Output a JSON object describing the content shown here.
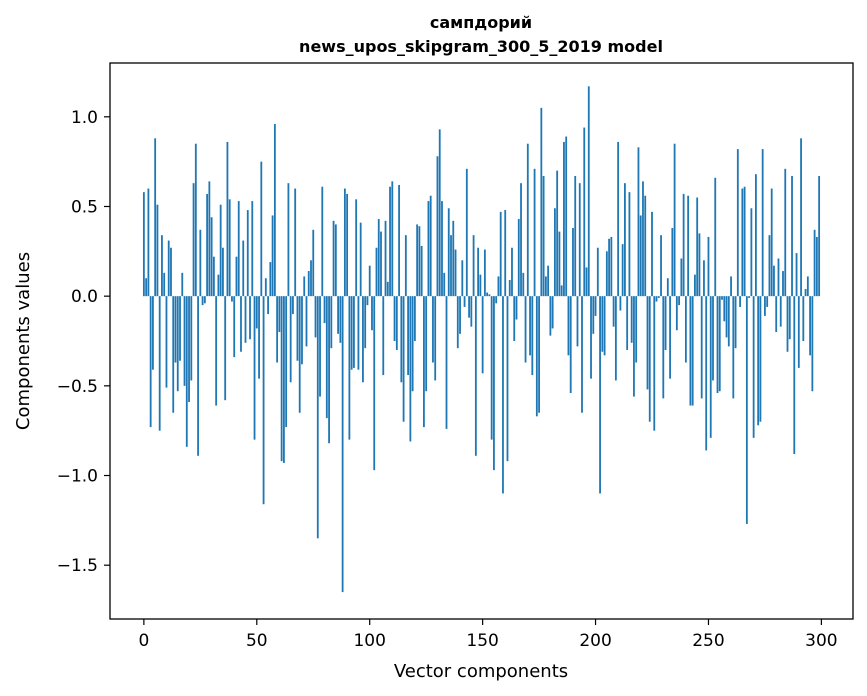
{
  "chart_data": {
    "type": "bar",
    "title_lines": [
      "сампдорий",
      "news_upos_skipgram_300_5_2019 model"
    ],
    "xlabel": "Vector components",
    "ylabel": "Components values",
    "xlim": [
      -15,
      314
    ],
    "ylim": [
      -1.8,
      1.3
    ],
    "x_ticks": [
      0,
      50,
      100,
      150,
      200,
      250,
      300
    ],
    "y_ticks": [
      -1.5,
      -1.0,
      -0.5,
      0.0,
      0.5,
      1.0
    ],
    "y_tick_labels": [
      "−1.5",
      "−1.0",
      "−0.5",
      "0.0",
      "0.5",
      "1.0"
    ],
    "grid": false,
    "bar_color": "#1f77b4",
    "x": [
      0,
      1,
      2,
      3,
      4,
      5,
      6,
      7,
      8,
      9,
      10,
      11,
      12,
      13,
      14,
      15,
      16,
      17,
      18,
      19,
      20,
      21,
      22,
      23,
      24,
      25,
      26,
      27,
      28,
      29,
      30,
      31,
      32,
      33,
      34,
      35,
      36,
      37,
      38,
      39,
      40,
      41,
      42,
      43,
      44,
      45,
      46,
      47,
      48,
      49,
      50,
      51,
      52,
      53,
      54,
      55,
      56,
      57,
      58,
      59,
      60,
      61,
      62,
      63,
      64,
      65,
      66,
      67,
      68,
      69,
      70,
      71,
      72,
      73,
      74,
      75,
      76,
      77,
      78,
      79,
      80,
      81,
      82,
      83,
      84,
      85,
      86,
      87,
      88,
      89,
      90,
      91,
      92,
      93,
      94,
      95,
      96,
      97,
      98,
      99,
      100,
      101,
      102,
      103,
      104,
      105,
      106,
      107,
      108,
      109,
      110,
      111,
      112,
      113,
      114,
      115,
      116,
      117,
      118,
      119,
      120,
      121,
      122,
      123,
      124,
      125,
      126,
      127,
      128,
      129,
      130,
      131,
      132,
      133,
      134,
      135,
      136,
      137,
      138,
      139,
      140,
      141,
      142,
      143,
      144,
      145,
      146,
      147,
      148,
      149,
      150,
      151,
      152,
      153,
      154,
      155,
      156,
      157,
      158,
      159,
      160,
      161,
      162,
      163,
      164,
      165,
      166,
      167,
      168,
      169,
      170,
      171,
      172,
      173,
      174,
      175,
      176,
      177,
      178,
      179,
      180,
      181,
      182,
      183,
      184,
      185,
      186,
      187,
      188,
      189,
      190,
      191,
      192,
      193,
      194,
      195,
      196,
      197,
      198,
      199,
      200,
      201,
      202,
      203,
      204,
      205,
      206,
      207,
      208,
      209,
      210,
      211,
      212,
      213,
      214,
      215,
      216,
      217,
      218,
      219,
      220,
      221,
      222,
      223,
      224,
      225,
      226,
      227,
      228,
      229,
      230,
      231,
      232,
      233,
      234,
      235,
      236,
      237,
      238,
      239,
      240,
      241,
      242,
      243,
      244,
      245,
      246,
      247,
      248,
      249,
      250,
      251,
      252,
      253,
      254,
      255,
      256,
      257,
      258,
      259,
      260,
      261,
      262,
      263,
      264,
      265,
      266,
      267,
      268,
      269,
      270,
      271,
      272,
      273,
      274,
      275,
      276,
      277,
      278,
      279,
      280,
      281,
      282,
      283,
      284,
      285,
      286,
      287,
      288,
      289,
      290,
      291,
      292,
      293,
      294,
      295,
      296,
      297,
      298,
      299
    ],
    "values": [
      0.58,
      0.1,
      0.6,
      -0.73,
      -0.41,
      0.88,
      0.51,
      -0.75,
      0.34,
      0.13,
      -0.51,
      0.31,
      0.27,
      -0.65,
      -0.37,
      -0.53,
      -0.36,
      0.13,
      -0.5,
      -0.84,
      -0.59,
      -0.47,
      0.63,
      0.85,
      -0.89,
      0.37,
      -0.05,
      -0.04,
      0.57,
      0.64,
      0.44,
      0.22,
      -0.61,
      0.12,
      0.51,
      0.27,
      -0.58,
      0.86,
      0.54,
      -0.03,
      -0.34,
      0.22,
      0.53,
      -0.31,
      0.31,
      -0.26,
      0.48,
      -0.24,
      0.53,
      -0.8,
      -0.18,
      -0.46,
      0.75,
      -1.16,
      0.1,
      -0.1,
      0.19,
      0.45,
      0.96,
      -0.37,
      -0.2,
      -0.92,
      -0.93,
      -0.73,
      0.63,
      -0.48,
      -0.1,
      0.6,
      -0.36,
      -0.65,
      -0.38,
      0.11,
      -0.28,
      0.14,
      0.2,
      0.37,
      -0.23,
      -1.35,
      -0.56,
      0.61,
      -0.15,
      -0.68,
      -0.82,
      -0.29,
      0.42,
      0.4,
      -0.21,
      -0.26,
      -1.65,
      0.6,
      0.57,
      -0.8,
      -0.41,
      -0.4,
      0.54,
      -0.41,
      0.41,
      -0.48,
      -0.29,
      -0.05,
      0.17,
      -0.19,
      -0.97,
      0.27,
      0.43,
      0.36,
      -0.44,
      0.42,
      0.08,
      0.61,
      0.64,
      -0.25,
      -0.3,
      0.62,
      -0.48,
      -0.7,
      0.34,
      -0.44,
      -0.81,
      -0.53,
      -0.25,
      0.4,
      0.39,
      0.28,
      -0.73,
      -0.53,
      0.53,
      0.56,
      -0.37,
      -0.47,
      0.78,
      0.93,
      0.53,
      0.13,
      -0.74,
      0.49,
      0.34,
      0.42,
      0.26,
      -0.29,
      -0.21,
      0.2,
      -0.06,
      0.71,
      -0.12,
      -0.17,
      0.34,
      -0.89,
      0.27,
      0.12,
      -0.43,
      0.26,
      0.02,
      0.01,
      -0.8,
      -0.97,
      -0.04,
      0.11,
      0.47,
      -1.1,
      0.48,
      -0.92,
      0.09,
      0.27,
      -0.25,
      -0.13,
      0.43,
      0.63,
      0.13,
      -0.37,
      0.85,
      -0.33,
      -0.44,
      0.71,
      -0.67,
      -0.65,
      1.05,
      0.67,
      0.11,
      0.17,
      -0.22,
      -0.18,
      0.49,
      0.7,
      0.36,
      0.06,
      0.86,
      0.89,
      -0.33,
      -0.54,
      0.38,
      0.67,
      -0.28,
      0.63,
      -0.65,
      0.94,
      0.16,
      1.17,
      -0.46,
      -0.21,
      -0.11,
      0.27,
      -1.1,
      -0.31,
      -0.33,
      0.25,
      0.32,
      0.33,
      -0.17,
      -0.47,
      0.86,
      -0.08,
      0.29,
      0.63,
      -0.3,
      0.58,
      -0.26,
      -0.56,
      -0.37,
      0.83,
      0.45,
      0.64,
      0.56,
      -0.52,
      -0.7,
      0.47,
      -0.75,
      -0.03,
      -0.01,
      0.34,
      -0.57,
      -0.3,
      0.1,
      -0.46,
      0.38,
      0.85,
      -0.19,
      -0.05,
      0.21,
      0.57,
      -0.37,
      0.56,
      -0.61,
      -0.61,
      0.12,
      0.55,
      0.35,
      -0.57,
      0.2,
      -0.86,
      0.33,
      -0.79,
      -0.47,
      0.66,
      -0.54,
      -0.53,
      -0.02,
      -0.14,
      -0.23,
      -0.28,
      0.11,
      -0.57,
      -0.29,
      0.82,
      -0.06,
      0.6,
      0.61,
      -1.27,
      -0.01,
      0.49,
      -0.79,
      0.68,
      -0.72,
      -0.7,
      0.82,
      -0.11,
      -0.06,
      0.34,
      0.6,
      0.17,
      -0.2,
      0.21,
      -0.17,
      0.14,
      0.71,
      -0.31,
      -0.24,
      0.67,
      -0.88,
      0.24,
      -0.4,
      0.88,
      -0.25,
      0.04,
      0.11,
      -0.33,
      -0.53,
      0.37,
      0.33,
      0.67
    ]
  }
}
